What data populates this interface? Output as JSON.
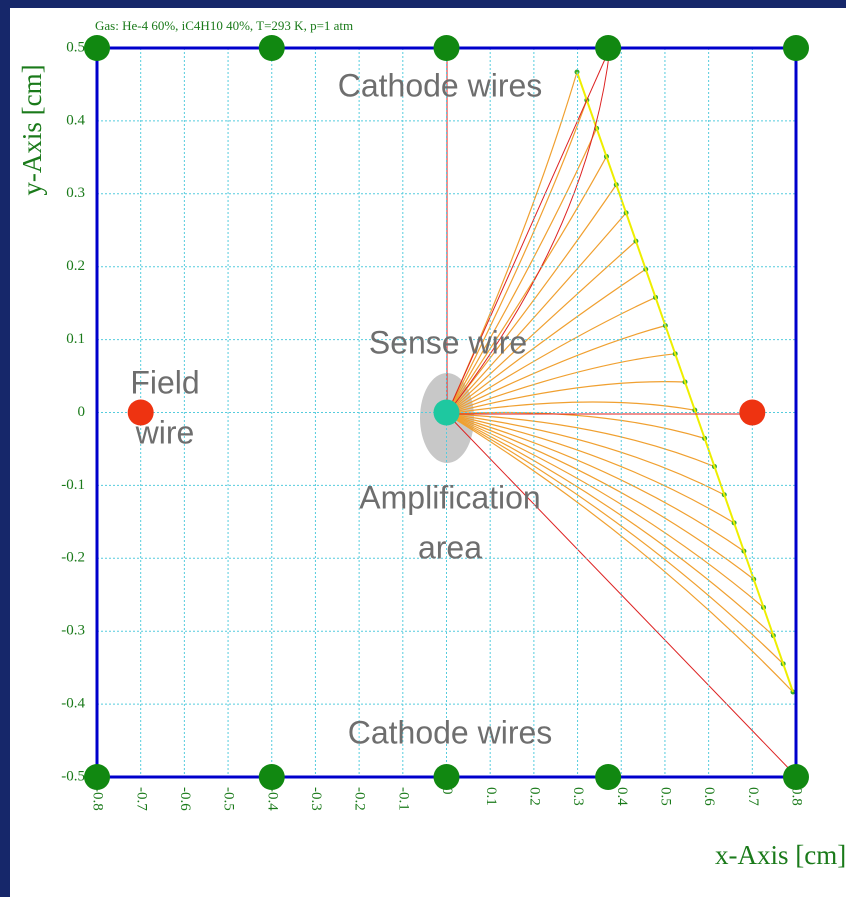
{
  "chart_data": {
    "type": "scatter",
    "title": "Gas: He-4 60%, iC4H10 40%, T=293 K, p=1 atm",
    "x_label": "x-Axis [cm]",
    "y_label": "y-Axis [cm]",
    "xlim": [
      -0.8,
      0.8
    ],
    "ylim": [
      -0.5,
      0.5
    ],
    "xticks": [
      -0.8,
      -0.7,
      -0.6,
      -0.5,
      -0.4,
      -0.3,
      -0.2,
      -0.1,
      0,
      0.1,
      0.2,
      0.3,
      0.4,
      0.5,
      0.6,
      0.7,
      0.8
    ],
    "yticks": [
      0.5,
      0.4,
      0.3,
      0.2,
      0.1,
      0,
      -0.1,
      -0.2,
      -0.3,
      -0.4,
      -0.5
    ],
    "grid": true,
    "series": [
      {
        "color": "#118811",
        "x": [
          -0.8,
          -0.4,
          0,
          0.37,
          0.8,
          -0.8,
          -0.4,
          0,
          0.37,
          0.8
        ],
        "values": [
          0.5,
          0.5,
          0.5,
          0.5,
          0.5,
          -0.5,
          -0.5,
          -0.5,
          -0.5,
          -0.5
        ]
      },
      {
        "color": "#1ec8a0",
        "x": [
          0
        ],
        "values": [
          0
        ]
      },
      {
        "color": "#ee3311",
        "x": [
          -0.7,
          0.7
        ],
        "values": [
          0,
          0
        ]
      }
    ],
    "annotations": [
      [
        "Cathode wires"
      ],
      [
        "Sense wire"
      ],
      [
        "Field",
        "wire"
      ],
      [
        "Amplification",
        "area"
      ],
      [
        "Cathode wires"
      ]
    ]
  }
}
